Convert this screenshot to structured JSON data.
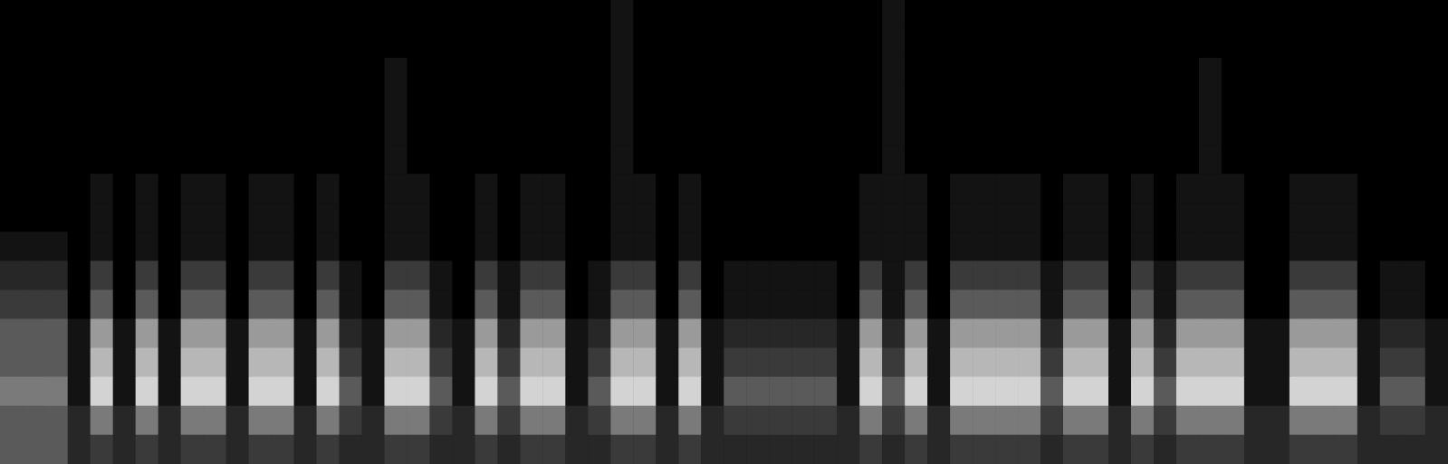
{
  "chart_data": {
    "type": "heatmap",
    "tick_labels": false,
    "grid": false,
    "color_range": [
      0,
      9
    ],
    "cells": [
      [
        0,
        0,
        0,
        0,
        0,
        0,
        0,
        0,
        0,
        0,
        0,
        0,
        0,
        0,
        0,
        0,
        0,
        0,
        0,
        0,
        0,
        0,
        0,
        0,
        0,
        0,
        0,
        1,
        0,
        0,
        0,
        0,
        0,
        0,
        0,
        0,
        0,
        0,
        0,
        1,
        0,
        0,
        0,
        0,
        0,
        0,
        0,
        0,
        0,
        0,
        0,
        0,
        0,
        0,
        0,
        0,
        0,
        0,
        0,
        0,
        0,
        0,
        0,
        0
      ],
      [
        0,
        0,
        0,
        0,
        0,
        0,
        0,
        0,
        0,
        0,
        0,
        0,
        0,
        0,
        0,
        0,
        0,
        0,
        0,
        0,
        0,
        0,
        0,
        0,
        0,
        0,
        0,
        1,
        0,
        0,
        0,
        0,
        0,
        0,
        0,
        0,
        0,
        0,
        0,
        1,
        0,
        0,
        0,
        0,
        0,
        0,
        0,
        0,
        0,
        0,
        0,
        0,
        0,
        0,
        0,
        0,
        0,
        0,
        0,
        0,
        0,
        0,
        0,
        0
      ],
      [
        0,
        0,
        0,
        0,
        0,
        0,
        0,
        0,
        0,
        0,
        0,
        0,
        0,
        0,
        0,
        0,
        0,
        1,
        0,
        0,
        0,
        0,
        0,
        0,
        0,
        0,
        0,
        1,
        0,
        0,
        0,
        0,
        0,
        0,
        0,
        0,
        0,
        0,
        0,
        1,
        0,
        0,
        0,
        0,
        0,
        0,
        0,
        0,
        0,
        0,
        0,
        0,
        0,
        1,
        0,
        0,
        0,
        0,
        0,
        0,
        0,
        0,
        0,
        0
      ],
      [
        0,
        0,
        0,
        0,
        0,
        0,
        0,
        0,
        0,
        0,
        0,
        0,
        0,
        0,
        0,
        0,
        0,
        1,
        0,
        0,
        0,
        0,
        0,
        0,
        0,
        0,
        0,
        1,
        0,
        0,
        0,
        0,
        0,
        0,
        0,
        0,
        0,
        0,
        0,
        1,
        0,
        0,
        0,
        0,
        0,
        0,
        0,
        0,
        0,
        0,
        0,
        0,
        0,
        1,
        0,
        0,
        0,
        0,
        0,
        0,
        0,
        0,
        0,
        0
      ],
      [
        0,
        0,
        0,
        0,
        0,
        0,
        0,
        0,
        0,
        0,
        0,
        0,
        0,
        0,
        0,
        0,
        0,
        1,
        0,
        0,
        0,
        0,
        0,
        0,
        0,
        0,
        0,
        1,
        0,
        0,
        0,
        0,
        0,
        0,
        0,
        0,
        0,
        0,
        0,
        1,
        0,
        0,
        0,
        0,
        0,
        0,
        0,
        0,
        0,
        0,
        0,
        0,
        0,
        1,
        0,
        0,
        0,
        0,
        0,
        0,
        0,
        0,
        0,
        0
      ],
      [
        0,
        0,
        0,
        0,
        0,
        0,
        0,
        0,
        0,
        0,
        0,
        0,
        0,
        0,
        0,
        0,
        0,
        1,
        0,
        0,
        0,
        0,
        0,
        0,
        0,
        0,
        0,
        1,
        0,
        0,
        0,
        0,
        0,
        0,
        0,
        0,
        0,
        0,
        0,
        1,
        0,
        0,
        0,
        0,
        0,
        0,
        0,
        0,
        0,
        0,
        0,
        0,
        0,
        1,
        0,
        0,
        0,
        0,
        0,
        0,
        0,
        0,
        0,
        0
      ],
      [
        0,
        0,
        0,
        0,
        1,
        0,
        1,
        0,
        1,
        1,
        0,
        1,
        1,
        0,
        1,
        0,
        0,
        1,
        1,
        0,
        0,
        1,
        0,
        1,
        1,
        0,
        0,
        1,
        1,
        0,
        1,
        0,
        0,
        0,
        0,
        0,
        0,
        0,
        1,
        1,
        1,
        0,
        1,
        1,
        1,
        1,
        0,
        1,
        1,
        0,
        1,
        0,
        1,
        1,
        1,
        0,
        0,
        1,
        1,
        1,
        0,
        0,
        0,
        0
      ],
      [
        0,
        0,
        0,
        0,
        1,
        0,
        1,
        0,
        1,
        1,
        0,
        1,
        1,
        0,
        1,
        0,
        0,
        1,
        1,
        0,
        0,
        1,
        0,
        1,
        1,
        0,
        0,
        1,
        1,
        0,
        1,
        0,
        0,
        0,
        0,
        0,
        0,
        0,
        1,
        1,
        1,
        0,
        1,
        1,
        1,
        1,
        0,
        1,
        1,
        0,
        1,
        0,
        1,
        1,
        1,
        0,
        0,
        1,
        1,
        1,
        0,
        0,
        0,
        0
      ],
      [
        1,
        1,
        1,
        0,
        1,
        0,
        1,
        0,
        1,
        1,
        0,
        1,
        1,
        0,
        1,
        0,
        0,
        1,
        1,
        0,
        0,
        1,
        0,
        1,
        1,
        0,
        0,
        1,
        1,
        0,
        1,
        0,
        0,
        0,
        0,
        0,
        0,
        0,
        1,
        1,
        1,
        0,
        1,
        1,
        1,
        1,
        0,
        1,
        1,
        0,
        1,
        0,
        1,
        1,
        1,
        0,
        0,
        1,
        1,
        1,
        0,
        0,
        0,
        0
      ],
      [
        2,
        2,
        2,
        0,
        3,
        0,
        3,
        0,
        3,
        3,
        0,
        3,
        3,
        0,
        3,
        1,
        0,
        3,
        3,
        1,
        0,
        3,
        1,
        3,
        3,
        0,
        1,
        3,
        3,
        0,
        3,
        0,
        1,
        1,
        1,
        1,
        1,
        0,
        3,
        1,
        3,
        0,
        3,
        3,
        3,
        3,
        1,
        3,
        3,
        0,
        3,
        1,
        3,
        3,
        3,
        0,
        0,
        3,
        3,
        3,
        0,
        1,
        1,
        0
      ],
      [
        3,
        3,
        3,
        0,
        4,
        0,
        4,
        0,
        4,
        4,
        0,
        4,
        4,
        0,
        4,
        1,
        0,
        4,
        4,
        1,
        0,
        4,
        1,
        4,
        4,
        0,
        1,
        4,
        4,
        0,
        4,
        0,
        1,
        1,
        1,
        1,
        1,
        0,
        4,
        1,
        4,
        0,
        4,
        4,
        4,
        4,
        1,
        4,
        4,
        0,
        4,
        1,
        4,
        4,
        4,
        0,
        0,
        4,
        4,
        4,
        0,
        1,
        1,
        0
      ],
      [
        4,
        4,
        4,
        1,
        6,
        1,
        6,
        1,
        6,
        6,
        1,
        6,
        6,
        1,
        6,
        2,
        1,
        6,
        6,
        2,
        1,
        6,
        2,
        6,
        6,
        1,
        2,
        6,
        6,
        1,
        6,
        1,
        2,
        2,
        2,
        2,
        2,
        1,
        6,
        2,
        6,
        1,
        6,
        6,
        6,
        6,
        2,
        6,
        6,
        1,
        6,
        2,
        6,
        6,
        6,
        1,
        1,
        6,
        6,
        6,
        1,
        2,
        2,
        1
      ],
      [
        4,
        4,
        4,
        1,
        7,
        1,
        7,
        1,
        7,
        7,
        1,
        7,
        7,
        1,
        7,
        3,
        1,
        7,
        7,
        3,
        1,
        7,
        3,
        7,
        7,
        1,
        3,
        7,
        7,
        1,
        7,
        1,
        3,
        3,
        3,
        3,
        3,
        1,
        7,
        3,
        7,
        1,
        7,
        7,
        7,
        7,
        3,
        7,
        7,
        1,
        7,
        3,
        7,
        7,
        7,
        1,
        1,
        7,
        7,
        7,
        1,
        3,
        3,
        1
      ],
      [
        5,
        5,
        5,
        1,
        8,
        1,
        8,
        1,
        8,
        8,
        1,
        8,
        8,
        1,
        8,
        4,
        1,
        8,
        8,
        4,
        1,
        8,
        4,
        8,
        8,
        1,
        4,
        8,
        8,
        1,
        8,
        1,
        4,
        4,
        4,
        4,
        4,
        1,
        8,
        4,
        8,
        1,
        8,
        8,
        8,
        8,
        4,
        8,
        8,
        1,
        8,
        4,
        8,
        8,
        8,
        1,
        1,
        8,
        8,
        8,
        1,
        4,
        4,
        1
      ],
      [
        4,
        4,
        4,
        2,
        5,
        2,
        5,
        2,
        5,
        5,
        2,
        5,
        5,
        2,
        5,
        3,
        2,
        5,
        5,
        3,
        2,
        5,
        3,
        5,
        5,
        2,
        3,
        5,
        5,
        2,
        5,
        2,
        3,
        3,
        3,
        3,
        3,
        2,
        5,
        3,
        5,
        2,
        5,
        5,
        5,
        5,
        3,
        5,
        5,
        2,
        5,
        3,
        5,
        5,
        5,
        2,
        2,
        5,
        5,
        5,
        2,
        3,
        3,
        2
      ],
      [
        4,
        4,
        4,
        2,
        3,
        2,
        3,
        2,
        3,
        3,
        2,
        3,
        3,
        2,
        3,
        2,
        2,
        3,
        3,
        2,
        2,
        3,
        2,
        3,
        3,
        2,
        2,
        3,
        3,
        2,
        3,
        2,
        2,
        2,
        2,
        2,
        2,
        2,
        3,
        2,
        3,
        2,
        3,
        3,
        3,
        3,
        2,
        3,
        3,
        2,
        3,
        2,
        3,
        3,
        3,
        2,
        2,
        3,
        3,
        3,
        2,
        2,
        2,
        2
      ]
    ]
  }
}
